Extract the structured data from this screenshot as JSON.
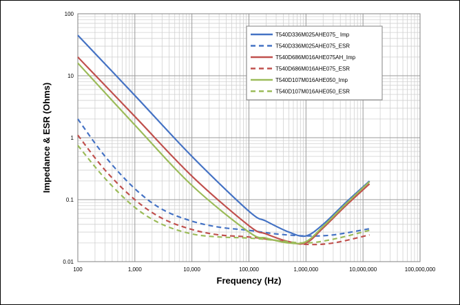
{
  "chart_data": {
    "type": "line",
    "title": "",
    "xlabel": "Frequency (Hz)",
    "ylabel": "Impedance & ESR (Ohms)",
    "x_scale": "log",
    "y_scale": "log",
    "xlim": [
      100,
      100000000
    ],
    "ylim": [
      0.01,
      100
    ],
    "x_ticks": [
      100,
      1000,
      10000,
      100000,
      1000000,
      10000000,
      100000000
    ],
    "x_tick_labels": [
      "100",
      "1,000",
      "10,000",
      "100,000",
      "1,000,000",
      "10,000,000",
      "100,000,000"
    ],
    "y_ticks": [
      0.01,
      0.1,
      1,
      10,
      100
    ],
    "y_tick_labels": [
      "0.01",
      "0.1",
      "1",
      "10",
      "100"
    ],
    "grid": true,
    "legend_position": "top-right",
    "series": [
      {
        "name": "T540D336M025AHE075_ Imp",
        "color": "#4472C4",
        "dash": false,
        "x": [
          100,
          1000,
          10000,
          100000,
          200000,
          500000,
          1000000,
          2000000,
          5000000,
          13000000
        ],
        "y": [
          45,
          4.8,
          0.5,
          0.065,
          0.045,
          0.03,
          0.026,
          0.04,
          0.09,
          0.2
        ]
      },
      {
        "name": "T540D336M025AHE075_ESR",
        "color": "#4472C4",
        "dash": true,
        "x": [
          100,
          300,
          1000,
          3000,
          10000,
          30000,
          100000,
          300000,
          1000000,
          3000000,
          13000000
        ],
        "y": [
          2.0,
          0.5,
          0.15,
          0.07,
          0.045,
          0.036,
          0.032,
          0.028,
          0.026,
          0.027,
          0.034
        ]
      },
      {
        "name": "T540D686M016AHE075AH_Imp",
        "color": "#C0504D",
        "dash": false,
        "x": [
          100,
          1000,
          10000,
          100000,
          200000,
          500000,
          1000000,
          2000000,
          5000000,
          13000000
        ],
        "y": [
          20,
          2.2,
          0.24,
          0.038,
          0.028,
          0.021,
          0.02,
          0.035,
          0.08,
          0.18
        ]
      },
      {
        "name": "T540D686M016AHE075_ESR",
        "color": "#C0504D",
        "dash": true,
        "x": [
          100,
          300,
          1000,
          3000,
          10000,
          30000,
          100000,
          300000,
          1000000,
          3000000,
          13000000
        ],
        "y": [
          1.1,
          0.3,
          0.1,
          0.05,
          0.033,
          0.027,
          0.025,
          0.022,
          0.019,
          0.02,
          0.027
        ]
      },
      {
        "name": "T540D107M016AHE050_Imp",
        "color": "#9BBB59",
        "dash": false,
        "x": [
          100,
          1000,
          10000,
          100000,
          200000,
          500000,
          1000000,
          2000000,
          5000000,
          13000000
        ],
        "y": [
          16,
          1.6,
          0.17,
          0.03,
          0.024,
          0.02,
          0.021,
          0.037,
          0.085,
          0.195
        ]
      },
      {
        "name": "T540D107M016AHE050_ESR",
        "color": "#9BBB59",
        "dash": true,
        "x": [
          100,
          300,
          1000,
          3000,
          10000,
          30000,
          100000,
          300000,
          1000000,
          3000000,
          13000000
        ],
        "y": [
          0.75,
          0.22,
          0.075,
          0.04,
          0.028,
          0.025,
          0.024,
          0.022,
          0.02,
          0.023,
          0.032
        ]
      }
    ]
  }
}
